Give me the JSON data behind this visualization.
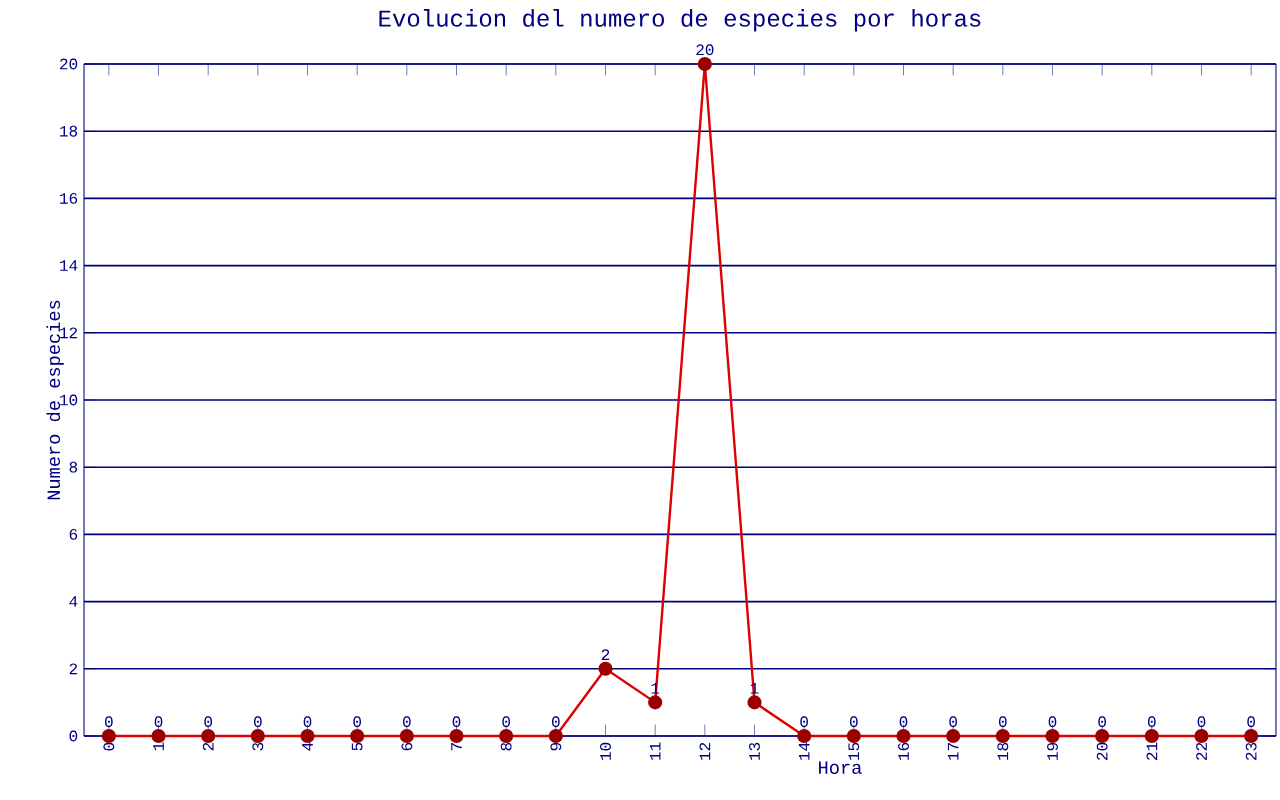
{
  "chart_data": {
    "type": "line",
    "title": "Evolucion del numero de especies por horas",
    "xlabel": "Hora",
    "ylabel": "Numero de especies",
    "categories": [
      "0",
      "1",
      "2",
      "3",
      "4",
      "5",
      "6",
      "7",
      "8",
      "9",
      "10",
      "11",
      "12",
      "13",
      "14",
      "15",
      "16",
      "17",
      "18",
      "19",
      "20",
      "21",
      "22",
      "23"
    ],
    "values": [
      0,
      0,
      0,
      0,
      0,
      0,
      0,
      0,
      0,
      0,
      2,
      1,
      20,
      1,
      0,
      0,
      0,
      0,
      0,
      0,
      0,
      0,
      0,
      0
    ],
    "color": "#dd0000",
    "marker": "circle",
    "line_style": "solid",
    "grid": "y",
    "data_labels": true,
    "ylim": [
      0,
      20
    ],
    "yticks": [
      0,
      2,
      4,
      6,
      8,
      10,
      12,
      14,
      16,
      18,
      20
    ]
  }
}
